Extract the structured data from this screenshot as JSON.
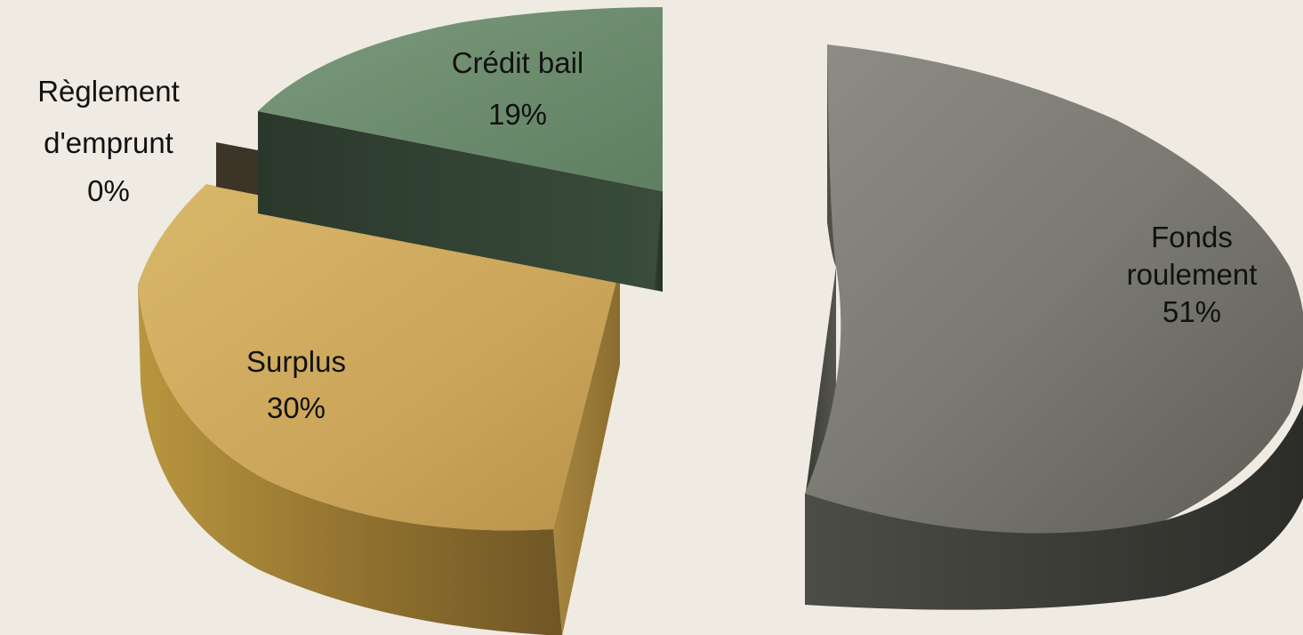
{
  "chart_data": {
    "type": "pie",
    "style": "3d-exploded",
    "title": "",
    "slices": [
      {
        "key": "fonds",
        "label_lines": [
          "Fonds",
          "roulement"
        ],
        "percent_label": "51%",
        "value": 51,
        "color": "#7e7e76"
      },
      {
        "key": "surplus",
        "label_lines": [
          "Surplus"
        ],
        "percent_label": "30%",
        "value": 30,
        "color": "#c9a657"
      },
      {
        "key": "reglement",
        "label_lines": [
          "Règlement",
          "d'emprunt"
        ],
        "percent_label": "0%",
        "value": 0,
        "color": "#3a3427"
      },
      {
        "key": "credit",
        "label_lines": [
          "Crédit bail"
        ],
        "percent_label": "19%",
        "value": 19,
        "color": "#6b8a6c"
      }
    ],
    "legend": "none",
    "grid": false
  },
  "colors": {
    "background": "#efebe2"
  }
}
